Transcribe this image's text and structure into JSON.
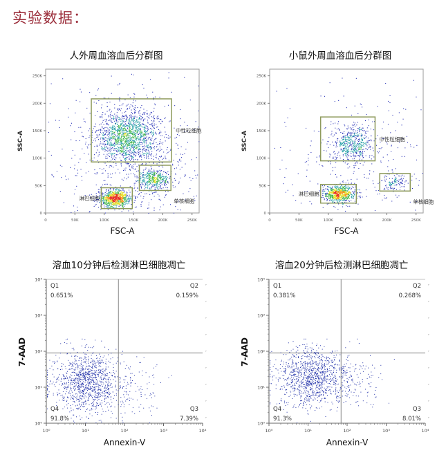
{
  "page": {
    "heading": "实验数据："
  },
  "chart_data": [
    {
      "type": "scatter",
      "title": "人外周血溶血后分群图",
      "xlabel": "FSC-A",
      "ylabel": "SSC-A",
      "xlim": [
        0,
        262144
      ],
      "ylim": [
        0,
        262144
      ],
      "x_ticks": [
        "0",
        "50K",
        "100K",
        "150K",
        "200K",
        "250K"
      ],
      "y_ticks": [
        "0",
        "50K",
        "100K",
        "150K",
        "200K",
        "250K"
      ],
      "gates": [
        {
          "label": "中性粒细胞",
          "x": [
            78000,
            215000
          ],
          "y": [
            93000,
            208000
          ]
        },
        {
          "label": "单核细胞",
          "x": [
            160000,
            214000
          ],
          "y": [
            41000,
            87000
          ]
        },
        {
          "label": "淋巴细胞",
          "x": [
            95000,
            148000
          ],
          "y": [
            8000,
            46000
          ]
        }
      ],
      "populations": [
        {
          "name": "neutrophils",
          "cx": 140000,
          "cy": 140000,
          "sx": 26000,
          "sy": 24000,
          "n": 1500
        },
        {
          "name": "monocytes",
          "cx": 185000,
          "cy": 62000,
          "sx": 14000,
          "sy": 10000,
          "n": 420
        },
        {
          "name": "lymphocytes",
          "cx": 118000,
          "cy": 27000,
          "sx": 14000,
          "sy": 8000,
          "n": 850
        },
        {
          "name": "background",
          "cx": 150000,
          "cy": 100000,
          "sx": 70000,
          "sy": 70000,
          "n": 700
        }
      ]
    },
    {
      "type": "scatter",
      "title": "小鼠外周血溶血后分群图",
      "xlabel": "FSC-A",
      "ylabel": "SSC-A",
      "xlim": [
        0,
        262144
      ],
      "ylim": [
        0,
        262144
      ],
      "x_ticks": [
        "0",
        "50K",
        "100K",
        "150K",
        "200K",
        "250K"
      ],
      "y_ticks": [
        "0",
        "50K",
        "100K",
        "150K",
        "200K",
        "250K"
      ],
      "gates": [
        {
          "label": "中性粒细胞",
          "x": [
            87000,
            180000
          ],
          "y": [
            95000,
            175000
          ]
        },
        {
          "label": "单核细胞",
          "x": [
            188000,
            240000
          ],
          "y": [
            40000,
            72000
          ]
        },
        {
          "label": "淋巴细胞",
          "x": [
            87000,
            148000
          ],
          "y": [
            18000,
            52000
          ]
        }
      ],
      "populations": [
        {
          "name": "neutrophils",
          "cx": 140000,
          "cy": 126000,
          "sx": 17000,
          "sy": 17000,
          "n": 520
        },
        {
          "name": "monocytes",
          "cx": 213000,
          "cy": 55000,
          "sx": 11000,
          "sy": 7000,
          "n": 110
        },
        {
          "name": "lymphocytes",
          "cx": 118000,
          "cy": 35000,
          "sx": 13000,
          "sy": 7500,
          "n": 750
        },
        {
          "name": "background",
          "cx": 150000,
          "cy": 95000,
          "sx": 70000,
          "sy": 70000,
          "n": 320
        }
      ]
    },
    {
      "type": "scatter",
      "title": "溶血10分钟后检测淋巴细胞凋亡",
      "xlabel": "Annexin-V",
      "ylabel": "7-AAD",
      "scale": "log",
      "xlim": [
        1,
        10000
      ],
      "ylim": [
        1,
        10000
      ],
      "x_ticks": [
        "10⁰",
        "10¹",
        "10²",
        "10³",
        "10⁴"
      ],
      "y_ticks": [
        "10⁰",
        "10¹",
        "10²",
        "10³",
        "10⁴"
      ],
      "quadrant_divider": {
        "x": 70,
        "y": 90
      },
      "quadrants": [
        {
          "name": "Q1",
          "value": "0.651%"
        },
        {
          "name": "Q2",
          "value": "0.159%"
        },
        {
          "name": "Q3",
          "value": "7.39%"
        },
        {
          "name": "Q4",
          "value": "91.8%"
        }
      ],
      "populations": [
        {
          "name": "main",
          "cx_log": 1.05,
          "cy_log": 1.15,
          "sx_log": 0.42,
          "sy_log": 0.42,
          "n": 1150
        },
        {
          "name": "q3",
          "cx_log": 2.3,
          "cy_log": 1.0,
          "sx_log": 0.35,
          "sy_log": 0.45,
          "n": 90
        }
      ]
    },
    {
      "type": "scatter",
      "title": "溶血20分钟后检测淋巴细胞凋亡",
      "xlabel": "Annexin-V",
      "ylabel": "7-AAD",
      "scale": "log",
      "xlim": [
        1,
        10000
      ],
      "ylim": [
        1,
        10000
      ],
      "x_ticks": [
        "10⁰",
        "10¹",
        "10²",
        "10³",
        "10⁴"
      ],
      "y_ticks": [
        "10⁰",
        "10¹",
        "10²",
        "10³",
        "10⁴"
      ],
      "quadrant_divider": {
        "x": 70,
        "y": 90
      },
      "quadrants": [
        {
          "name": "Q1",
          "value": "0.381%"
        },
        {
          "name": "Q2",
          "value": "0.268%"
        },
        {
          "name": "Q3",
          "value": "8.01%"
        },
        {
          "name": "Q4",
          "value": "91.3%"
        }
      ],
      "populations": [
        {
          "name": "main",
          "cx_log": 1.1,
          "cy_log": 1.3,
          "sx_log": 0.45,
          "sy_log": 0.4,
          "n": 1150
        },
        {
          "name": "q3",
          "cx_log": 2.3,
          "cy_log": 1.1,
          "sx_log": 0.35,
          "sy_log": 0.45,
          "n": 100
        }
      ]
    }
  ]
}
